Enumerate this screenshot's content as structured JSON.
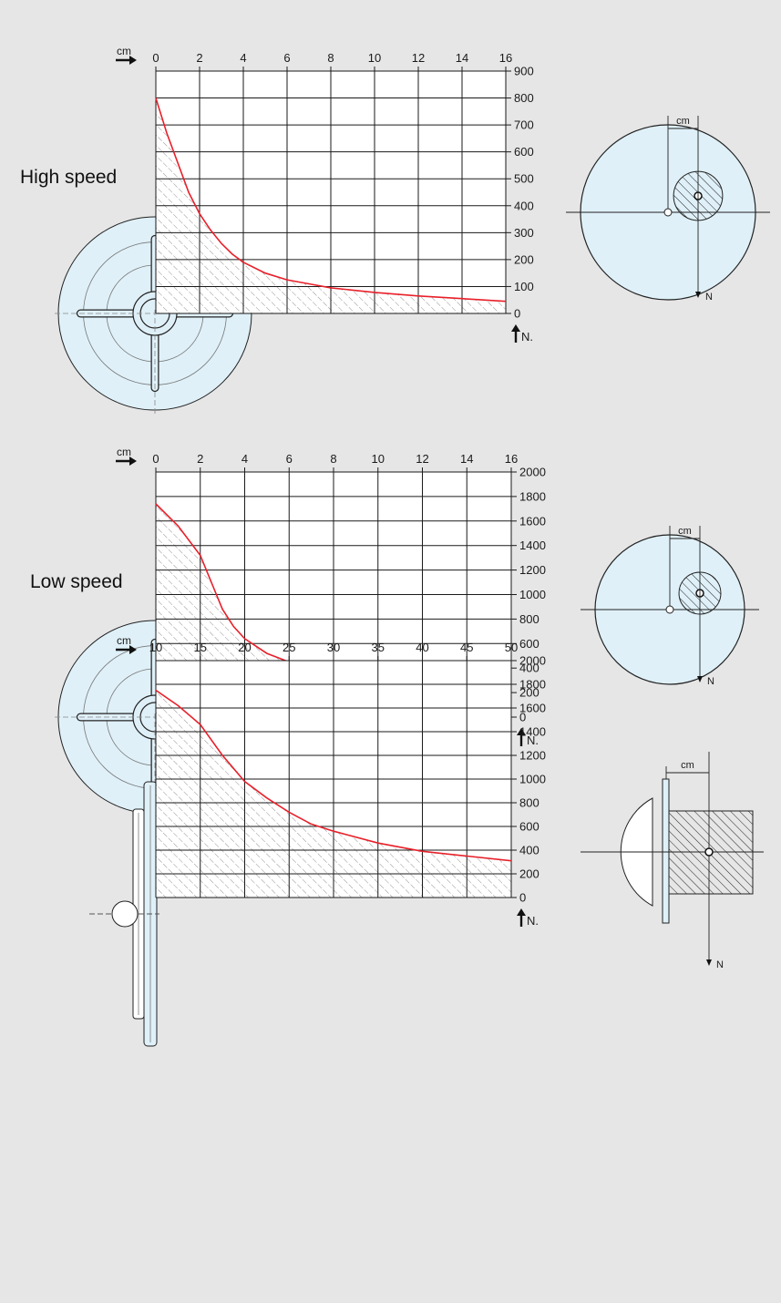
{
  "colors": {
    "background": "#e6e6e6",
    "curve": "#e8202a",
    "disc_fill": "#dff0f8",
    "grid": "#1a1a1a"
  },
  "chart_data": [
    {
      "type": "line",
      "title": "High speed",
      "x_unit_label": "cm",
      "y_unit_label": "N.",
      "x_ticks": [
        "0",
        "2",
        "4",
        "6",
        "8",
        "10",
        "12",
        "14",
        "16"
      ],
      "y_ticks": [
        "900",
        "800",
        "700",
        "600",
        "500",
        "400",
        "300",
        "200",
        "100",
        "0"
      ],
      "xlim": [
        0,
        16
      ],
      "ylim": [
        0,
        900
      ],
      "grid": true,
      "hatched_area_under_curve": true,
      "series": [
        {
          "x": [
            0,
            0.5,
            1,
            1.5,
            2,
            2.5,
            3,
            3.5,
            4,
            5,
            6,
            7,
            8,
            10,
            12,
            14,
            16
          ],
          "y": [
            800,
            670,
            560,
            450,
            370,
            310,
            260,
            220,
            190,
            150,
            125,
            110,
            95,
            78,
            65,
            55,
            45
          ]
        }
      ],
      "diagram": "disc",
      "side_diagram": {
        "type": "disc",
        "offset_label": "cm",
        "force_label": "N"
      }
    },
    {
      "type": "line",
      "title": "Low speed",
      "x_unit_label": "cm",
      "y_unit_label": "N.",
      "x_ticks": [
        "0",
        "2",
        "4",
        "6",
        "8",
        "10",
        "12",
        "14",
        "16"
      ],
      "y_ticks": [
        "2000",
        "1800",
        "1600",
        "1400",
        "1200",
        "1000",
        "800",
        "600",
        "400",
        "200",
        "0"
      ],
      "xlim": [
        0,
        16
      ],
      "ylim": [
        0,
        2000
      ],
      "grid": true,
      "hatched_area_under_curve": true,
      "series": [
        {
          "x": [
            0,
            1,
            2,
            2.5,
            3,
            3.5,
            4,
            5,
            6,
            7,
            8,
            10,
            12,
            14,
            16
          ],
          "y": [
            1740,
            1560,
            1320,
            1100,
            880,
            740,
            640,
            520,
            450,
            390,
            340,
            270,
            230,
            200,
            170
          ]
        }
      ],
      "diagram": "disc",
      "side_diagram": {
        "type": "disc",
        "offset_label": "cm",
        "force_label": "N"
      }
    },
    {
      "type": "line",
      "title": "",
      "x_unit_label": "cm",
      "y_unit_label": "N.",
      "x_ticks": [
        "10",
        "15",
        "20",
        "25",
        "30",
        "35",
        "40",
        "45",
        "50"
      ],
      "y_ticks": [
        "2000",
        "1800",
        "1600",
        "1400",
        "1200",
        "1000",
        "800",
        "600",
        "400",
        "200",
        "0"
      ],
      "xlim": [
        10,
        50
      ],
      "ylim": [
        0,
        2000
      ],
      "grid": true,
      "hatched_area_under_curve": true,
      "series": [
        {
          "x": [
            10,
            12.5,
            15,
            17.5,
            20,
            22.5,
            25,
            27.5,
            30,
            35,
            40,
            45,
            50
          ],
          "y": [
            1750,
            1620,
            1460,
            1200,
            980,
            840,
            720,
            620,
            560,
            460,
            390,
            350,
            310
          ]
        }
      ],
      "diagram": "wheel-side",
      "side_diagram": {
        "type": "side",
        "offset_label": "cm",
        "force_label": "N"
      }
    }
  ]
}
